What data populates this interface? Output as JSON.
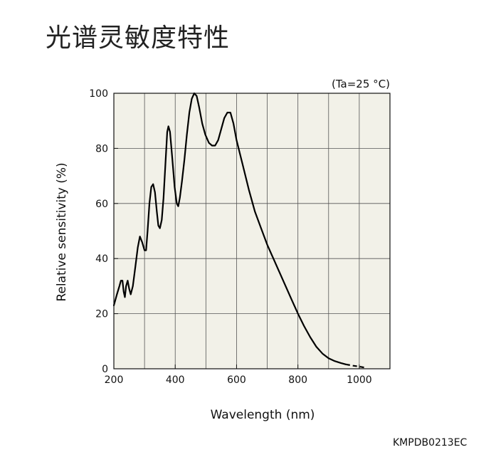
{
  "title": "光谱灵敏度特性",
  "doc_code": "KMPDB0213EC",
  "chart_data": {
    "type": "line",
    "condition": "(Ta=25 °C)",
    "xlabel": "Wavelength (nm)",
    "ylabel": "Relative sensitivity (%)",
    "xlim": [
      200,
      1100
    ],
    "ylim": [
      0,
      100
    ],
    "x_ticks": [
      200,
      400,
      600,
      800,
      1000
    ],
    "y_ticks": [
      0,
      20,
      40,
      60,
      80,
      100
    ],
    "x_grid_step": 100,
    "y_grid_step": 20,
    "grid": true,
    "plot_background": "#f2f1e8",
    "line_color": "#000000",
    "series": [
      {
        "solid": [
          [
            200,
            23
          ],
          [
            210,
            27
          ],
          [
            218,
            30
          ],
          [
            223,
            32
          ],
          [
            228,
            32
          ],
          [
            232,
            28
          ],
          [
            236,
            26
          ],
          [
            240,
            30
          ],
          [
            245,
            32
          ],
          [
            250,
            29
          ],
          [
            255,
            27
          ],
          [
            262,
            30
          ],
          [
            270,
            37
          ],
          [
            278,
            44
          ],
          [
            285,
            48
          ],
          [
            292,
            46
          ],
          [
            300,
            43
          ],
          [
            305,
            43
          ],
          [
            310,
            50
          ],
          [
            316,
            60
          ],
          [
            322,
            66
          ],
          [
            328,
            67
          ],
          [
            334,
            64
          ],
          [
            340,
            57
          ],
          [
            345,
            52
          ],
          [
            350,
            51
          ],
          [
            356,
            54
          ],
          [
            362,
            62
          ],
          [
            368,
            74
          ],
          [
            374,
            86
          ],
          [
            378,
            88
          ],
          [
            383,
            86
          ],
          [
            390,
            77
          ],
          [
            398,
            66
          ],
          [
            405,
            60
          ],
          [
            410,
            59
          ],
          [
            415,
            62
          ],
          [
            422,
            68
          ],
          [
            430,
            76
          ],
          [
            438,
            85
          ],
          [
            446,
            93
          ],
          [
            454,
            98
          ],
          [
            462,
            100
          ],
          [
            470,
            99
          ],
          [
            478,
            95
          ],
          [
            488,
            89
          ],
          [
            498,
            85
          ],
          [
            510,
            82
          ],
          [
            520,
            81
          ],
          [
            530,
            81
          ],
          [
            540,
            83
          ],
          [
            550,
            87
          ],
          [
            560,
            91
          ],
          [
            570,
            93
          ],
          [
            580,
            93
          ],
          [
            590,
            89
          ],
          [
            600,
            83
          ],
          [
            620,
            74
          ],
          [
            640,
            65
          ],
          [
            660,
            57
          ],
          [
            680,
            51
          ],
          [
            700,
            45
          ],
          [
            720,
            40
          ],
          [
            740,
            35
          ],
          [
            760,
            30
          ],
          [
            780,
            25
          ],
          [
            800,
            20
          ],
          [
            820,
            15.5
          ],
          [
            840,
            11.5
          ],
          [
            860,
            8
          ],
          [
            880,
            5.5
          ],
          [
            900,
            3.8
          ],
          [
            920,
            2.8
          ],
          [
            940,
            2.1
          ],
          [
            956,
            1.6
          ]
        ],
        "dashed": [
          [
            956,
            1.6
          ],
          [
            980,
            1.1
          ],
          [
            1000,
            0.8
          ],
          [
            1020,
            0.4
          ]
        ]
      }
    ]
  }
}
